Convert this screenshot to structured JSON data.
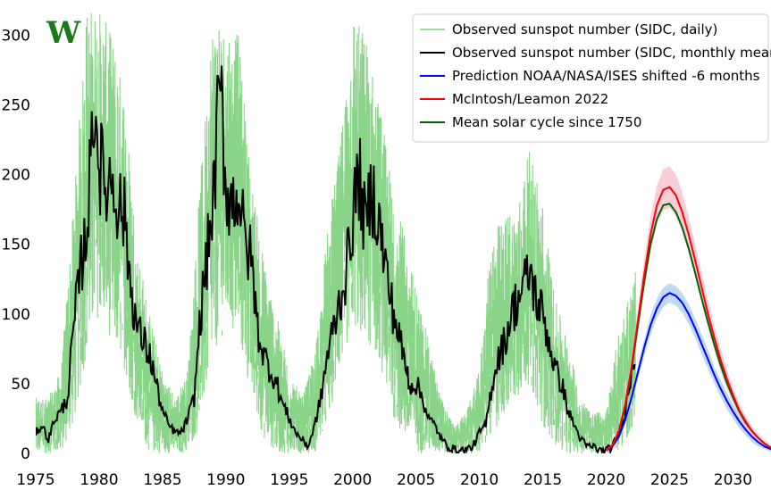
{
  "watermark": "W",
  "chart_data": {
    "type": "line",
    "title": "",
    "xlabel": "",
    "ylabel": "",
    "xlim": [
      1975,
      2033
    ],
    "ylim": [
      0,
      320
    ],
    "x_ticks": [
      1975,
      1980,
      1985,
      1990,
      1995,
      2000,
      2005,
      2010,
      2015,
      2020,
      2025,
      2030
    ],
    "y_ticks": [
      0,
      50,
      100,
      150,
      200,
      250,
      300
    ],
    "y_tick_labels": [
      "0",
      "50",
      "100",
      "150",
      "200",
      "250",
      "300"
    ],
    "grid": false,
    "legend_position": "top-right",
    "series": [
      {
        "name": "Observed sunspot number (SIDC, daily)",
        "color": "#7ccf7c",
        "style": "vertical-spikes",
        "envelope": {
          "x": [
            1975,
            1976,
            1977,
            1978,
            1979,
            1980,
            1981,
            1982,
            1983,
            1984,
            1985,
            1986,
            1987,
            1988,
            1989,
            1990,
            1991,
            1992,
            1993,
            1994,
            1995,
            1996,
            1997,
            1998,
            1999,
            2000,
            2001,
            2002,
            2003,
            2004,
            2005,
            2006,
            2007,
            2008,
            2009,
            2010,
            2011,
            2012,
            2013,
            2014,
            2015,
            2016,
            2017,
            2018,
            2019,
            2020,
            2021,
            2022.3
          ],
          "low": [
            0,
            0,
            0,
            20,
            70,
            100,
            80,
            60,
            20,
            0,
            0,
            0,
            0,
            20,
            70,
            90,
            80,
            40,
            10,
            0,
            0,
            0,
            0,
            20,
            60,
            90,
            80,
            70,
            30,
            10,
            0,
            0,
            0,
            0,
            0,
            0,
            10,
            30,
            40,
            50,
            20,
            5,
            0,
            0,
            0,
            0,
            0,
            20
          ],
          "high": [
            40,
            40,
            60,
            180,
            320,
            320,
            300,
            260,
            150,
            100,
            60,
            40,
            60,
            200,
            320,
            310,
            300,
            200,
            140,
            100,
            60,
            40,
            70,
            160,
            220,
            320,
            300,
            260,
            200,
            160,
            120,
            80,
            40,
            20,
            30,
            60,
            160,
            170,
            180,
            220,
            180,
            110,
            80,
            40,
            30,
            30,
            90,
            130
          ]
        }
      },
      {
        "name": "Observed sunspot number (SIDC, monthly mean)",
        "color": "#000000",
        "x": [
          1975.0,
          1975.5,
          1976.0,
          1976.5,
          1977.0,
          1977.5,
          1978.0,
          1978.5,
          1979.0,
          1979.3,
          1979.6,
          1980.0,
          1980.5,
          1981.0,
          1981.5,
          1982.0,
          1982.5,
          1983.0,
          1983.5,
          1984.0,
          1984.5,
          1985.0,
          1985.5,
          1986.0,
          1986.5,
          1987.0,
          1987.5,
          1988.0,
          1988.5,
          1989.0,
          1989.3,
          1989.6,
          1990.0,
          1990.5,
          1991.0,
          1991.5,
          1992.0,
          1992.5,
          1993.0,
          1993.5,
          1994.0,
          1994.5,
          1995.0,
          1995.5,
          1996.0,
          1996.5,
          1997.0,
          1997.5,
          1998.0,
          1998.5,
          1999.0,
          1999.5,
          2000.0,
          2000.5,
          2001.0,
          2001.5,
          2002.0,
          2002.5,
          2003.0,
          2003.5,
          2004.0,
          2004.5,
          2005.0,
          2005.5,
          2006.0,
          2006.5,
          2007.0,
          2007.5,
          2008.0,
          2008.5,
          2009.0,
          2009.5,
          2010.0,
          2010.5,
          2011.0,
          2011.5,
          2012.0,
          2012.5,
          2013.0,
          2013.5,
          2014.0,
          2014.5,
          2015.0,
          2015.5,
          2016.0,
          2016.5,
          2017.0,
          2017.5,
          2018.0,
          2018.5,
          2019.0,
          2019.5,
          2020.0,
          2020.5,
          2021.0,
          2021.5,
          2022.0,
          2022.3
        ],
        "values": [
          15,
          20,
          10,
          25,
          30,
          40,
          90,
          130,
          160,
          200,
          260,
          210,
          190,
          200,
          180,
          170,
          120,
          90,
          80,
          70,
          50,
          30,
          20,
          15,
          15,
          25,
          40,
          100,
          140,
          180,
          230,
          260,
          190,
          180,
          190,
          150,
          140,
          90,
          70,
          60,
          50,
          35,
          25,
          15,
          10,
          5,
          20,
          40,
          70,
          90,
          110,
          130,
          170,
          200,
          160,
          190,
          170,
          140,
          110,
          90,
          70,
          50,
          50,
          40,
          25,
          20,
          10,
          5,
          3,
          2,
          3,
          5,
          15,
          20,
          50,
          70,
          80,
          100,
          110,
          120,
          130,
          110,
          100,
          80,
          60,
          50,
          30,
          20,
          10,
          5,
          5,
          2,
          2,
          5,
          15,
          30,
          60,
          75
        ]
      },
      {
        "name": "Prediction NOAA/NASA/ISES shifted -6 months",
        "color": "#0000ff",
        "band_color": "#b3d4f5",
        "x": [
          2020.0,
          2020.5,
          2021.0,
          2021.5,
          2022.0,
          2022.5,
          2023.0,
          2023.5,
          2024.0,
          2024.5,
          2025.0,
          2025.5,
          2026.0,
          2026.5,
          2027.0,
          2027.5,
          2028.0,
          2028.5,
          2029.0,
          2029.5,
          2030.0,
          2030.5,
          2031.0,
          2031.5,
          2032.0,
          2032.5,
          2033.0
        ],
        "values": [
          2,
          5,
          12,
          24,
          40,
          58,
          76,
          92,
          104,
          112,
          115,
          113,
          108,
          100,
          90,
          79,
          68,
          57,
          47,
          38,
          30,
          23,
          17,
          12,
          8,
          5,
          3
        ],
        "band_halfwidth": [
          1,
          1,
          2,
          3,
          4,
          5,
          6,
          7,
          7,
          7,
          7,
          7,
          7,
          7,
          7,
          7,
          7,
          6,
          6,
          6,
          5,
          5,
          4,
          4,
          3,
          2,
          2
        ]
      },
      {
        "name": "McIntosh/Leamon 2022",
        "color": "#ff0000",
        "band_color": "#f7c6d2",
        "x": [
          2020.0,
          2020.5,
          2021.0,
          2021.5,
          2022.0,
          2022.5,
          2023.0,
          2023.5,
          2024.0,
          2024.5,
          2025.0,
          2025.5,
          2026.0,
          2026.5,
          2027.0,
          2027.5,
          2028.0,
          2028.5,
          2029.0,
          2029.5,
          2030.0,
          2030.5,
          2031.0,
          2031.5,
          2032.0,
          2032.5,
          2033.0
        ],
        "values": [
          2,
          6,
          16,
          35,
          62,
          95,
          128,
          157,
          178,
          189,
          191,
          185,
          173,
          157,
          139,
          120,
          101,
          84,
          68,
          54,
          42,
          31,
          23,
          16,
          11,
          7,
          4
        ],
        "band_halfwidth": [
          1,
          2,
          3,
          5,
          7,
          9,
          11,
          13,
          14,
          15,
          15,
          15,
          14,
          13,
          12,
          11,
          10,
          9,
          8,
          7,
          6,
          5,
          4,
          3,
          3,
          2,
          2
        ]
      },
      {
        "name": "Mean solar cycle since 1750",
        "color": "#006400",
        "x": [
          2020.0,
          2020.5,
          2021.0,
          2021.5,
          2022.0,
          2022.5,
          2023.0,
          2023.5,
          2024.0,
          2024.5,
          2025.0,
          2025.5,
          2026.0,
          2026.5,
          2027.0,
          2027.5,
          2028.0,
          2028.5,
          2029.0,
          2029.5,
          2030.0,
          2030.5,
          2031.0,
          2031.5,
          2032.0,
          2032.5,
          2033.0
        ],
        "values": [
          2,
          6,
          15,
          33,
          60,
          92,
          123,
          150,
          168,
          178,
          179,
          173,
          162,
          147,
          130,
          112,
          95,
          79,
          64,
          51,
          40,
          30,
          22,
          16,
          11,
          7,
          4
        ],
        "band_halfwidth": null
      }
    ]
  }
}
